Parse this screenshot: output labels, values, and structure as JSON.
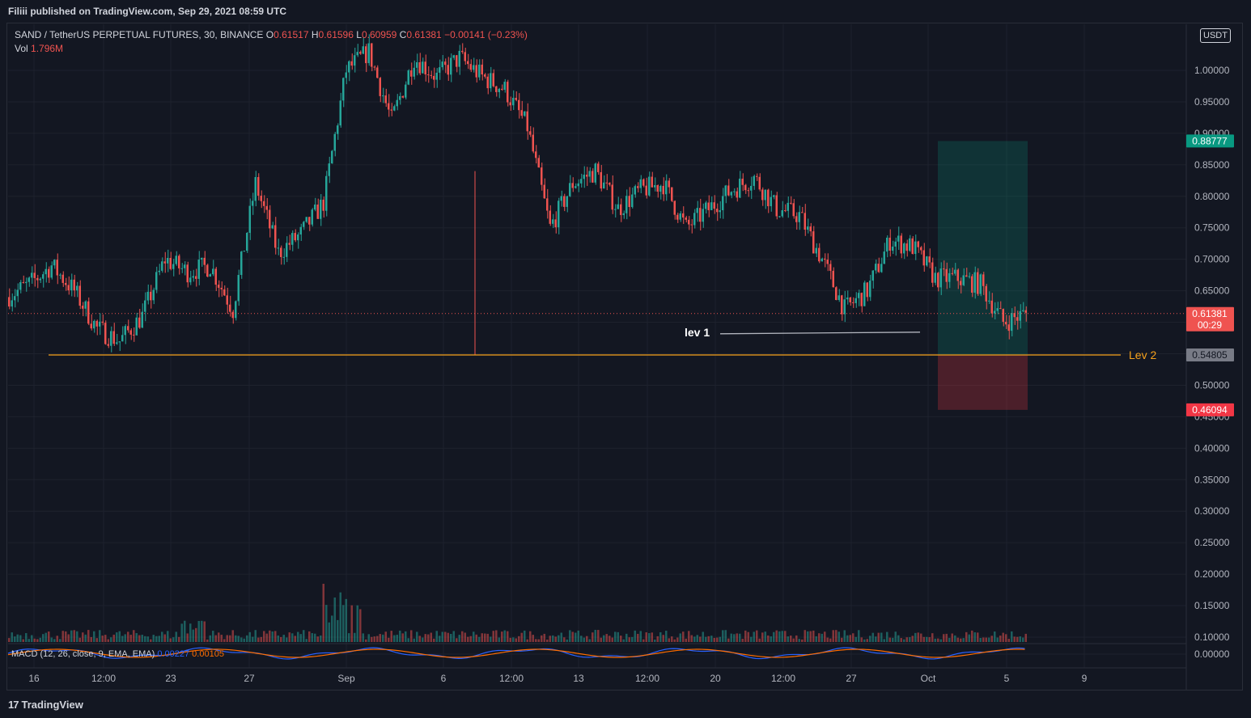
{
  "header": {
    "published": "Filiii published on TradingView.com, Sep 29, 2021 08:59 UTC"
  },
  "legend": {
    "symbol": "SAND / TetherUS PERPETUAL FUTURES, 30, BINANCE",
    "o_label": "O",
    "o_value": "0.61517",
    "h_label": "H",
    "h_value": "0.61596",
    "l_label": "L",
    "l_value": "0.60959",
    "c_label": "C",
    "c_value": "0.61381",
    "change": "−0.00141 (−0.23%)",
    "vol_label": "Vol",
    "vol_value": "1.796M"
  },
  "macd": {
    "label": "MACD (12, 26, close, 9, EMA, EMA)",
    "v1": "0.00227",
    "v2": "0.00105"
  },
  "currency_button": "USDT",
  "footer": {
    "brand": "TradingView",
    "glyph": "17"
  },
  "colors": {
    "up": "#26a69a",
    "down": "#ef5350",
    "grid": "#1e222d",
    "text": "#b2b5be",
    "lev2": "#f7a21b",
    "lev1": "#b2b5be",
    "target": "#089981",
    "stop": "#f23645"
  },
  "chart_data": {
    "type": "line",
    "series_kind": "candlestick (30m) — approximated as a price path",
    "ylim": [
      0.0,
      1.05
    ],
    "yticks": [
      "1.00000",
      "0.95000",
      "0.90000",
      "0.85000",
      "0.80000",
      "0.75000",
      "0.70000",
      "0.65000",
      "0.60000",
      "0.55000",
      "0.50000",
      "0.45000",
      "0.40000",
      "0.35000",
      "0.30000",
      "0.25000",
      "0.20000",
      "0.15000",
      "0.10000",
      "0.00000"
    ],
    "xticks": [
      "16",
      "12:00",
      "23",
      "27",
      "Sep",
      "6",
      "12:00",
      "13",
      "12:00",
      "20",
      "12:00",
      "27",
      "Oct",
      "5",
      "9"
    ],
    "price_path": [
      [
        "Aug 15",
        0.64
      ],
      [
        "Aug 16",
        0.66
      ],
      [
        "Aug 17",
        0.69
      ],
      [
        "Aug 18",
        0.65
      ],
      [
        "Aug 19",
        0.59
      ],
      [
        "Aug 20",
        0.57
      ],
      [
        "Aug 21",
        0.61
      ],
      [
        "Aug 22",
        0.7
      ],
      [
        "Aug 23",
        0.68
      ],
      [
        "Aug 24",
        0.69
      ],
      [
        "Aug 25",
        0.62
      ],
      [
        "Aug 26",
        0.82
      ],
      [
        "Aug 27",
        0.71
      ],
      [
        "Aug 28",
        0.74
      ],
      [
        "Aug 29",
        0.79
      ],
      [
        "Aug 30",
        1.0
      ],
      [
        "Aug 31",
        1.03
      ],
      [
        "Sep 1",
        0.92
      ],
      [
        "Sep 2",
        1.02
      ],
      [
        "Sep 3",
        0.99
      ],
      [
        "Sep 4",
        1.02
      ],
      [
        "Sep 5",
        0.99
      ],
      [
        "Sep 6",
        0.97
      ],
      [
        "Sep 7",
        0.91
      ],
      [
        "Sep 8",
        0.75
      ],
      [
        "Sep 9",
        0.82
      ],
      [
        "Sep 10",
        0.84
      ],
      [
        "Sep 11",
        0.78
      ],
      [
        "Sep 12",
        0.81
      ],
      [
        "Sep 13",
        0.82
      ],
      [
        "Sep 14",
        0.75
      ],
      [
        "Sep 15",
        0.78
      ],
      [
        "Sep 16",
        0.81
      ],
      [
        "Sep 17",
        0.83
      ],
      [
        "Sep 18",
        0.78
      ],
      [
        "Sep 19",
        0.77
      ],
      [
        "Sep 20",
        0.7
      ],
      [
        "Sep 21",
        0.62
      ],
      [
        "Sep 22",
        0.65
      ],
      [
        "Sep 23",
        0.73
      ],
      [
        "Sep 24",
        0.72
      ],
      [
        "Sep 25",
        0.67
      ],
      [
        "Sep 26",
        0.67
      ],
      [
        "Sep 27",
        0.66
      ],
      [
        "Sep 28",
        0.6
      ],
      [
        "Sep 29",
        0.61381
      ]
    ],
    "last_price": {
      "label": "0.61381",
      "countdown": "00:29"
    },
    "annotations": [
      {
        "type": "hline",
        "label": "Lev 2",
        "value": 0.54805,
        "price_label": "0.54805"
      },
      {
        "type": "segment",
        "label": "lev 1",
        "value": 0.583
      },
      {
        "type": "long_position",
        "entry": 0.54805,
        "target": 0.88777,
        "stop": 0.46094,
        "target_label": "0.88777",
        "stop_label": "0.46094"
      }
    ],
    "volume": {
      "label": "Vol",
      "last": "1.796M"
    },
    "grid": true
  }
}
